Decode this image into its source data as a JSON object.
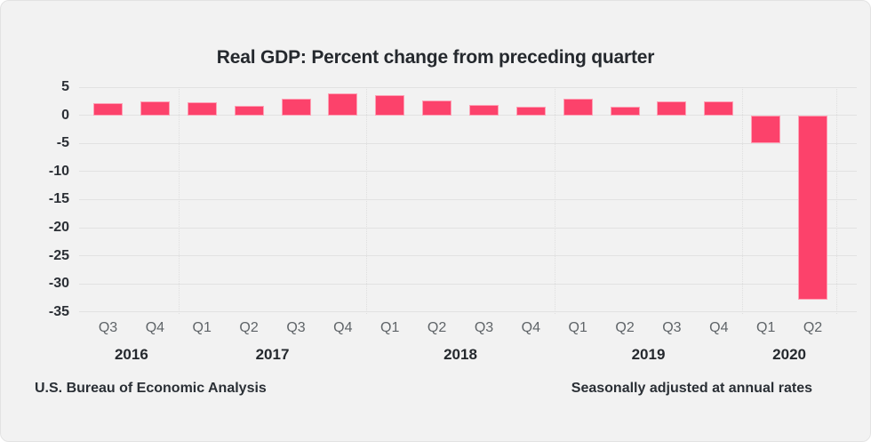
{
  "chart_data": {
    "type": "bar",
    "title": "Real GDP: Percent change from preceding quarter",
    "categories": [
      "Q3",
      "Q4",
      "Q1",
      "Q2",
      "Q3",
      "Q4",
      "Q1",
      "Q2",
      "Q3",
      "Q4",
      "Q1",
      "Q2",
      "Q3",
      "Q4",
      "Q1",
      "Q2"
    ],
    "year_groups": [
      {
        "label": "2016",
        "quarters": 2
      },
      {
        "label": "2017",
        "quarters": 4
      },
      {
        "label": "2018",
        "quarters": 4
      },
      {
        "label": "2019",
        "quarters": 4
      },
      {
        "label": "2020",
        "quarters": 2
      }
    ],
    "values": [
      2.2,
      2.5,
      2.3,
      1.7,
      2.9,
      3.9,
      3.6,
      2.6,
      1.9,
      1.5,
      2.9,
      1.5,
      2.4,
      2.5,
      -5.0,
      -32.9
    ],
    "y_ticks": [
      5,
      0,
      -5,
      -10,
      -15,
      -20,
      -25,
      -30,
      -35
    ],
    "ylim": [
      -35,
      5
    ],
    "xlabel": "",
    "ylabel": "",
    "grid": true,
    "legend": false
  },
  "footer": {
    "left": "U.S. Bureau of Economic Analysis",
    "right": "Seasonally adjusted at annual rates"
  },
  "colors": {
    "background": "#f2f2f2",
    "bar": "#fc426b",
    "bar_border": "rgba(255,255,255,0.5)",
    "gridline": "#e2e2e2",
    "title_text": "#25292e",
    "tick_text": "#2c3036",
    "quarter_text": "#5f6468",
    "year_text": "#25292e",
    "footer_text": "#2a2f35"
  }
}
